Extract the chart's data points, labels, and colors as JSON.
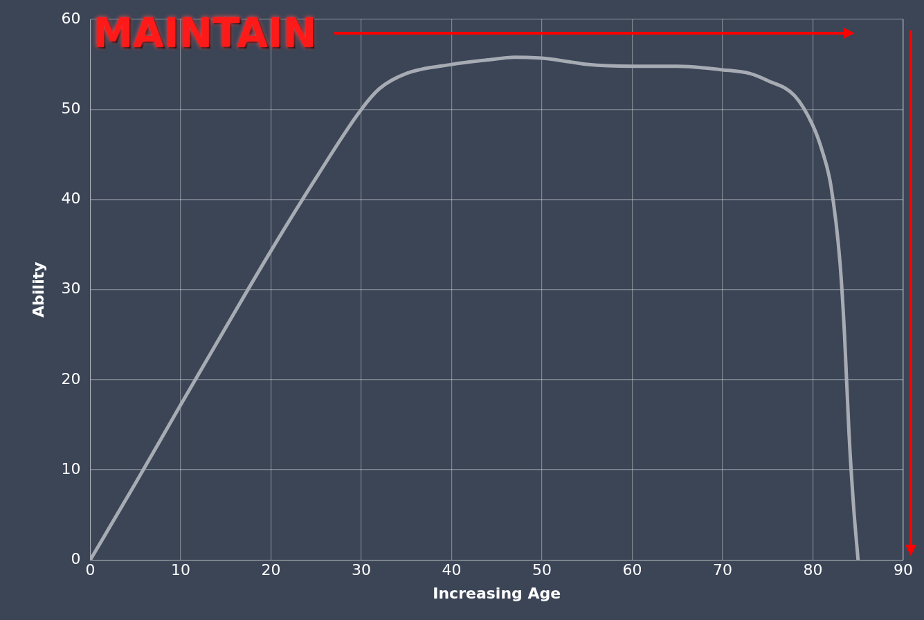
{
  "chart_data": {
    "type": "line",
    "xlabel": "Increasing Age",
    "ylabel": "Ability",
    "x": [
      0,
      5,
      10,
      15,
      20,
      25,
      30,
      32,
      35,
      40,
      44,
      47,
      50,
      53,
      55,
      60,
      65,
      70,
      73,
      75,
      78,
      80,
      81,
      82,
      83,
      83.5,
      84,
      84.5,
      85
    ],
    "series": [
      {
        "color": "#a7abb3",
        "values": [
          0,
          8.5,
          17.2,
          25.8,
          34.3,
          42.4,
          50,
          52.3,
          54,
          55,
          55.5,
          55.8,
          55.7,
          55.3,
          55,
          54.8,
          54.8,
          54.4,
          54,
          53.2,
          51.5,
          48.2,
          45.5,
          41.5,
          33,
          25,
          14,
          6,
          0
        ]
      }
    ],
    "xlim": [
      0,
      90
    ],
    "xticks": [
      0,
      10,
      20,
      30,
      40,
      50,
      60,
      70,
      80,
      90
    ],
    "ylim": [
      0,
      60
    ],
    "yticks": [
      0,
      10,
      20,
      30,
      40,
      50,
      60
    ],
    "grid": true,
    "legend": false,
    "marker": "none",
    "line_style": "solid",
    "annotations": [
      "MAINTAIN"
    ]
  }
}
